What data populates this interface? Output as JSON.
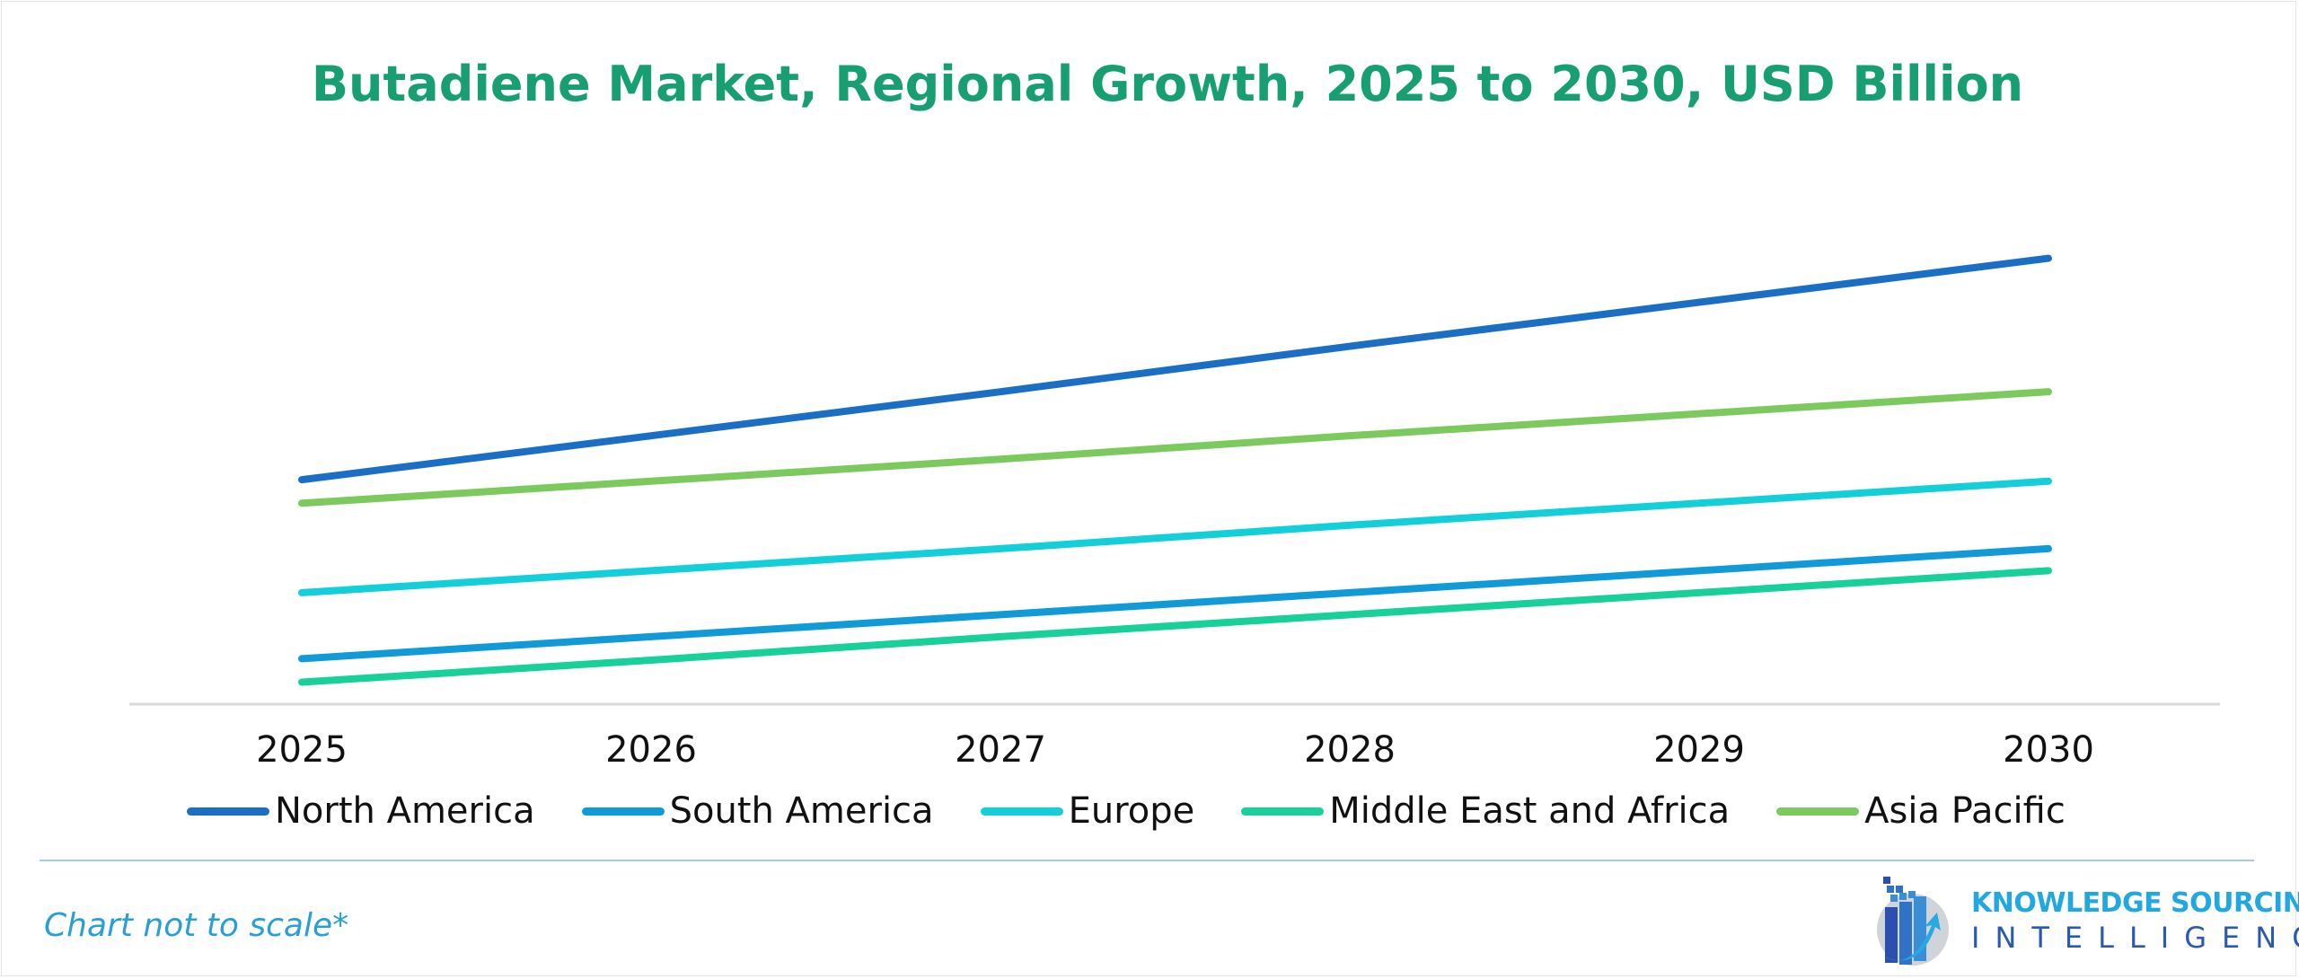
{
  "chart_data": {
    "type": "line",
    "title": "Butadiene Market, Regional Growth, 2025 to 2030, USD Billion",
    "categories": [
      "2025",
      "2026",
      "2027",
      "2028",
      "2029",
      "2030"
    ],
    "grid": false,
    "y_axis_visible": false,
    "legend_position": "bottom",
    "series": [
      {
        "name": "North America",
        "color": "#1a6fc4",
        "values": [
          1.53,
          1.83,
          2.13,
          2.44,
          2.74,
          3.04
        ]
      },
      {
        "name": "South America",
        "color": "#109bd8",
        "values": [
          0.31,
          0.46,
          0.61,
          0.76,
          0.91,
          1.06
        ]
      },
      {
        "name": "Europe",
        "color": "#12cfd9",
        "values": [
          0.76,
          0.91,
          1.06,
          1.22,
          1.37,
          1.52
        ]
      },
      {
        "name": "Middle East and Africa",
        "color": "#17d09a",
        "values": [
          0.15,
          0.3,
          0.46,
          0.61,
          0.76,
          0.91
        ]
      },
      {
        "name": "Asia Pacific",
        "color": "#7cc95e",
        "values": [
          1.37,
          1.52,
          1.67,
          1.83,
          1.98,
          2.13
        ]
      }
    ]
  },
  "footer": {
    "note": "Chart not to scale*"
  },
  "logo": {
    "line1": "KNOWLEDGE SOURCING",
    "line2": "INTELLIGENCE"
  },
  "colors": {
    "title": "#179f72",
    "note": "#2a9fd6"
  }
}
